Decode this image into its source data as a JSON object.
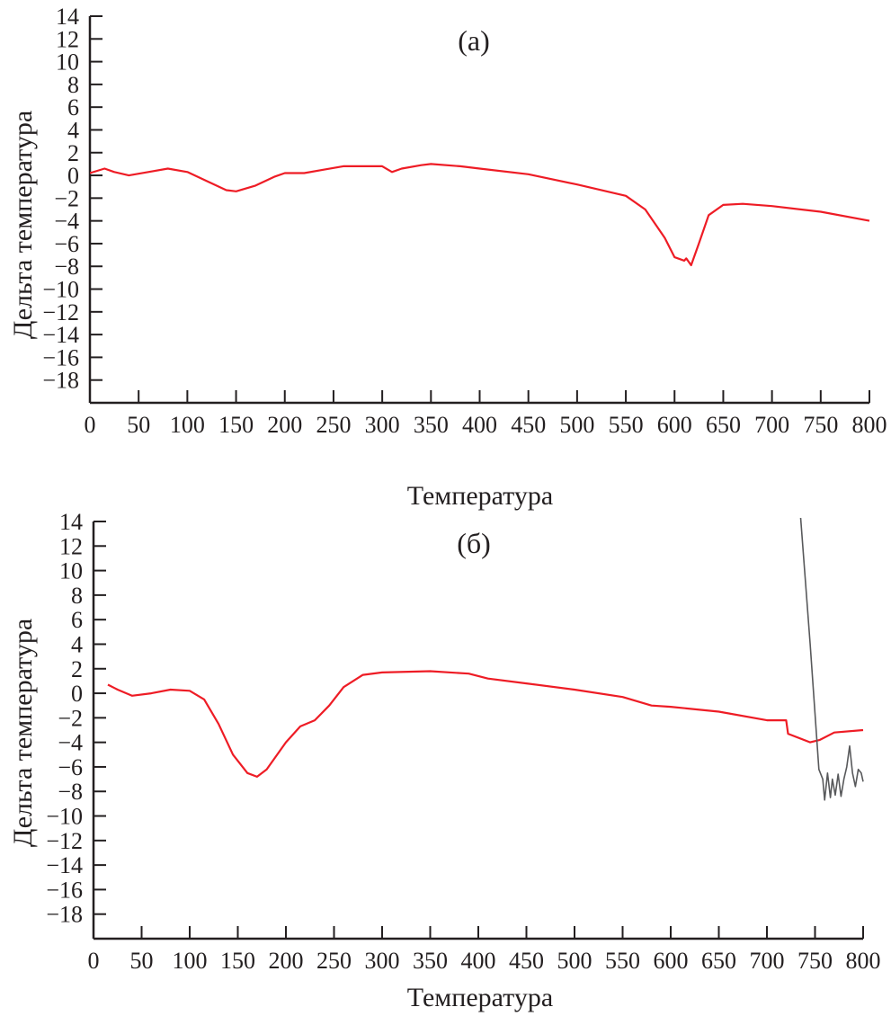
{
  "chart_data": [
    {
      "type": "line",
      "title": "(a)",
      "xlabel": "Температура",
      "ylabel": "Дельта температура",
      "xlim": [
        0,
        800
      ],
      "ylim": [
        -20,
        14
      ],
      "xticks": [
        0,
        50,
        100,
        150,
        200,
        250,
        300,
        350,
        400,
        450,
        500,
        550,
        600,
        650,
        700,
        750,
        800
      ],
      "yticks": [
        14,
        12,
        10,
        8,
        6,
        4,
        2,
        0,
        -2,
        -4,
        -6,
        -8,
        -10,
        -12,
        -14,
        -16,
        -18
      ],
      "grid": false,
      "series": [
        {
          "color": "#ee1c25",
          "x": [
            0,
            15,
            25,
            40,
            60,
            80,
            100,
            120,
            140,
            150,
            170,
            190,
            200,
            220,
            240,
            260,
            280,
            300,
            310,
            320,
            340,
            350,
            380,
            400,
            450,
            500,
            550,
            570,
            590,
            600,
            610,
            612,
            617,
            625,
            635,
            650,
            670,
            700,
            750,
            800
          ],
          "y": [
            0.2,
            0.6,
            0.3,
            0,
            0.3,
            0.6,
            0.3,
            -0.5,
            -1.3,
            -1.4,
            -0.9,
            -0.1,
            0.2,
            0.2,
            0.5,
            0.8,
            0.8,
            0.8,
            0.3,
            0.6,
            0.9,
            1.0,
            0.8,
            0.6,
            0.1,
            -0.8,
            -1.8,
            -3,
            -5.5,
            -7.2,
            -7.5,
            -7.3,
            -7.9,
            -6,
            -3.5,
            -2.6,
            -2.5,
            -2.7,
            -3.2,
            -4.0
          ]
        }
      ]
    },
    {
      "type": "line",
      "title": "(б)",
      "xlabel": "Температура",
      "ylabel": "Дельта температура",
      "xlim": [
        0,
        800
      ],
      "ylim": [
        -20,
        14
      ],
      "xticks": [
        0,
        50,
        100,
        150,
        200,
        250,
        300,
        350,
        400,
        450,
        500,
        550,
        600,
        650,
        700,
        750,
        800
      ],
      "yticks": [
        14,
        12,
        10,
        8,
        6,
        4,
        2,
        0,
        -2,
        -4,
        -6,
        -8,
        -10,
        -12,
        -14,
        -16,
        -18
      ],
      "grid": false,
      "series": [
        {
          "color": "#ee1c25",
          "x": [
            15,
            25,
            40,
            60,
            80,
            100,
            115,
            130,
            145,
            160,
            170,
            180,
            200,
            215,
            230,
            245,
            260,
            280,
            300,
            350,
            390,
            410,
            450,
            500,
            550,
            580,
            600,
            650,
            700,
            720,
            722,
            745,
            755,
            770,
            800
          ],
          "y": [
            0.7,
            0.3,
            -0.2,
            0,
            0.3,
            0.2,
            -0.5,
            -2.5,
            -5,
            -6.5,
            -6.8,
            -6.2,
            -4,
            -2.7,
            -2.2,
            -1,
            0.5,
            1.5,
            1.7,
            1.8,
            1.6,
            1.2,
            0.8,
            0.3,
            -0.3,
            -1.0,
            -1.1,
            -1.5,
            -2.2,
            -2.2,
            -3.3,
            -4.0,
            -3.8,
            -3.2,
            -3.0
          ]
        },
        {
          "color": "#58595b",
          "x": [
            735,
            745,
            754,
            758,
            760,
            763,
            766,
            768,
            771,
            774,
            777,
            780,
            783,
            786,
            789,
            792,
            795,
            798,
            800
          ],
          "y": [
            14.4,
            4,
            -6.2,
            -7,
            -8.7,
            -6.5,
            -8.5,
            -7,
            -8.3,
            -6.6,
            -8.4,
            -7,
            -6,
            -4.3,
            -6.5,
            -7.6,
            -6.2,
            -6.5,
            -7.2
          ]
        }
      ]
    }
  ]
}
